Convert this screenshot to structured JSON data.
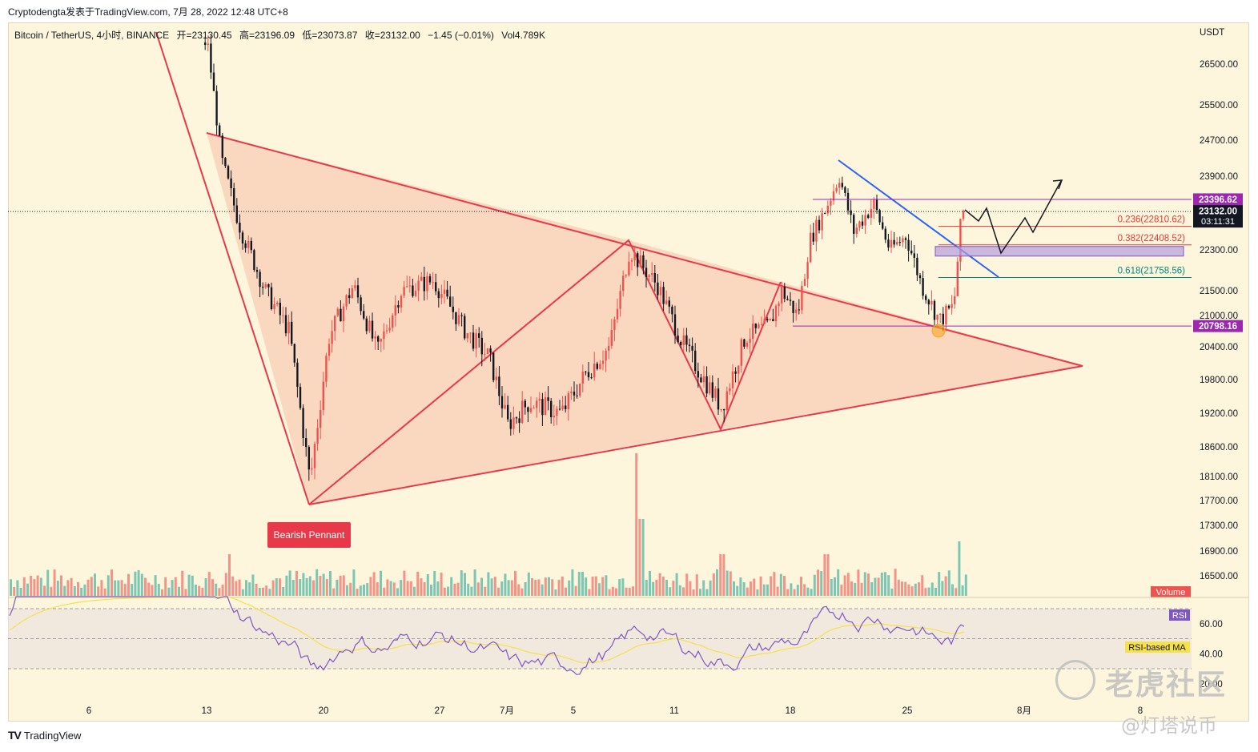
{
  "attribution": "Cryptodengta发表于TradingView.com, 7月 28, 2022 12:48 UTC+8",
  "legend": {
    "symbol": "Bitcoin / TetherUS, 4小时, BINANCE",
    "open": "开=23130.45",
    "high": "高=23196.09",
    "low": "低=23073.87",
    "close": "收=23132.00",
    "change": "−1.45 (−0.01%)",
    "volume": "Vol4.789K"
  },
  "currency": "USDT",
  "footer": "TradingView",
  "watermark": {
    "main": "老虎社区",
    "sub": "@灯塔说币"
  },
  "pattern_label": "Bearish Pennant",
  "colors": {
    "up": "#26a69a",
    "down": "#ef5350",
    "pattern": "#e8394a",
    "pattern_fill": "#f8bfaa",
    "trendline": "#2962ff",
    "rsi": "#7e57c2",
    "rsi_ma": "#f6e04b",
    "background": "#fdf6dc"
  },
  "chart_data": {
    "type": "candlestick",
    "price_axis": {
      "ticks": [
        26500,
        25500,
        24700,
        23900,
        22300,
        21500,
        21000,
        20400,
        19800,
        19200,
        18600,
        18100,
        17700,
        17300,
        16900,
        16500
      ],
      "range": [
        16300,
        27500
      ]
    },
    "time_axis": {
      "labels": [
        "6",
        "13",
        "20",
        "27",
        "7月",
        "5",
        "11",
        "18",
        "25",
        "8月",
        "8"
      ]
    },
    "price_badges": [
      {
        "label": "23396.62",
        "price": 23396.62,
        "color": "#9c27b0"
      },
      {
        "label": "23132.00",
        "sub": "03:11:31",
        "price": 23132.0,
        "color": "#131722"
      },
      {
        "label": "20798.16",
        "price": 20798.16,
        "color": "#9c27b0"
      }
    ],
    "fibonacci": [
      {
        "label": "0.236(22810.62)",
        "level": 0.236,
        "price": 22810.62,
        "color": "#e53935"
      },
      {
        "label": "0.382(22408.52)",
        "level": 0.382,
        "price": 22408.52,
        "color": "#e53935"
      },
      {
        "label": "0.618(21758.56)",
        "level": 0.618,
        "price": 21758.56,
        "color": "#00897b"
      }
    ],
    "panes": {
      "volume_label": "Volume",
      "rsi_label": "RSI",
      "rsi_ma_label": "RSI-based MA",
      "rsi_ticks": [
        60.0,
        40.0,
        20.0
      ]
    }
  }
}
